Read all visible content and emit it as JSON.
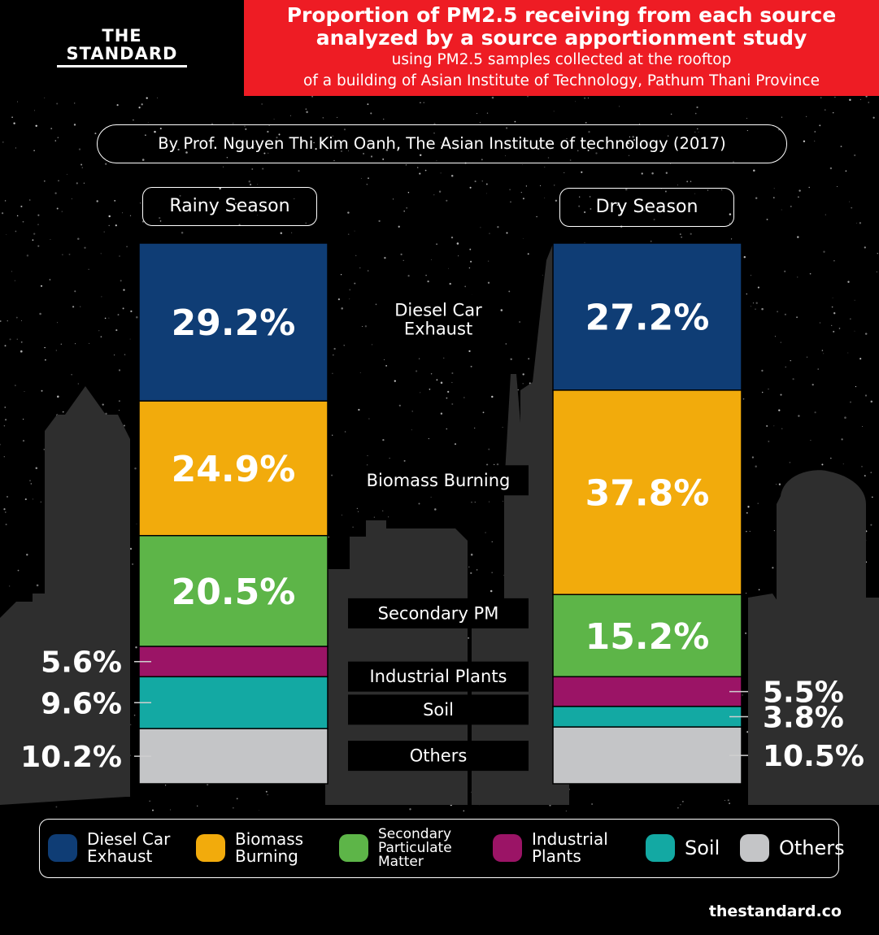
{
  "brand": {
    "logo_line1": "THE",
    "logo_line2": "STANDARD",
    "footer_url": "thestandard.co"
  },
  "header": {
    "title_line1": "Proportion of PM2.5 receiving from each source",
    "title_line2": "analyzed by a source apportionment study",
    "subtitle_line1": "using PM2.5 samples collected at the rooftop",
    "subtitle_line2": "of a building of Asian Institute of Technology, Pathum Thani Province"
  },
  "credit": "By Prof. Nguyen Thi Kim Oanh, The Asian Institute of technology (2017)",
  "colors": {
    "diesel": "#0f3d75",
    "biomass": "#f2ab0c",
    "secondary": "#5db548",
    "industrial": "#9b1466",
    "soil": "#13a9a3",
    "others": "#c4c5c7",
    "title_bg": "#ee1c24"
  },
  "chart_data": {
    "type": "bar",
    "stacked": true,
    "normalized_percent": true,
    "categories": [
      "Rainy Season",
      "Dry Season"
    ],
    "series": [
      {
        "name": "Diesel Car Exhaust",
        "values": [
          29.2,
          27.2
        ],
        "labels": [
          "29.2%",
          "27.2%"
        ]
      },
      {
        "name": "Biomass Burning",
        "values": [
          24.9,
          37.8
        ],
        "labels": [
          "24.9%",
          "37.8%"
        ]
      },
      {
        "name": "Secondary Particulate Matter",
        "values": [
          20.5,
          15.2
        ],
        "labels": [
          "20.5%",
          "15.2%"
        ]
      },
      {
        "name": "Industrial Plants",
        "values": [
          5.6,
          5.5
        ],
        "labels": [
          "5.6%",
          "5.5%"
        ]
      },
      {
        "name": "Soil",
        "values": [
          9.6,
          3.8
        ],
        "labels": [
          "9.6%",
          "3.8%"
        ]
      },
      {
        "name": "Others",
        "values": [
          10.2,
          10.5
        ],
        "labels": [
          "10.2%",
          "10.5%"
        ]
      }
    ],
    "center_labels": [
      "Diesel Car\nExhaust",
      "Biomass Burning",
      "Secondary PM",
      "Industrial Plants",
      "Soil",
      "Others"
    ],
    "legend_position": "bottom"
  },
  "legend": [
    {
      "label": "Diesel Car\nExhaust",
      "color_key": "diesel"
    },
    {
      "label": "Biomass\nBurning",
      "color_key": "biomass"
    },
    {
      "label": "Secondary\nParticulate\nMatter",
      "color_key": "secondary"
    },
    {
      "label": "Industrial\nPlants",
      "color_key": "industrial"
    },
    {
      "label": "Soil",
      "color_key": "soil"
    },
    {
      "label": "Others",
      "color_key": "others"
    }
  ]
}
